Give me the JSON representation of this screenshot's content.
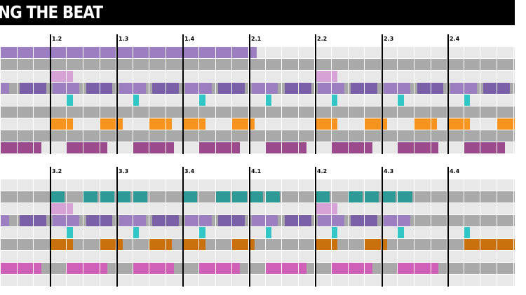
{
  "title": "NG THE BEAT",
  "colors": {
    "background": "#ffffff",
    "row_light": "#e8e8e8",
    "row_dark": "#a9a9a9",
    "gridline": "#ffffff",
    "bar_line": "#000000",
    "title_bg": "#000000",
    "title_fg": "#ffffff"
  },
  "panels": [
    {
      "bar_labels": [
        "1.2",
        "1.3",
        "1.4",
        "2.1",
        "2.2",
        "2.3",
        "2.4"
      ],
      "tracks": [
        {
          "name": "track-1",
          "color": "#9b7fc1",
          "notes": [
            [
              -1,
              14.5
            ]
          ]
        },
        {
          "name": "track-2",
          "color": "#a9a9a9",
          "notes": []
        },
        {
          "name": "track-3",
          "color": "#d7a3d6",
          "notes": [
            [
              2,
              3.4
            ],
            [
              18,
              19.4
            ]
          ]
        },
        {
          "name": "track-4",
          "color": "#7a60a6",
          "notes": [
            [
              -1,
              -0.45
            ],
            [
              0.2,
              1.8
            ],
            [
              2.2,
              3.8
            ],
            [
              4.2,
              5.8
            ],
            [
              6.2,
              7.8
            ],
            [
              8.2,
              9.8
            ],
            [
              10.2,
              11.8
            ],
            [
              12.2,
              13.8
            ],
            [
              14.2,
              15.8
            ],
            [
              16.2,
              17.8
            ],
            [
              18.2,
              19.8
            ],
            [
              20.2,
              21.8
            ],
            [
              22.2,
              23.8
            ],
            [
              24.2,
              25.8
            ],
            [
              26.2,
              27.8
            ],
            [
              28.2,
              29.8
            ],
            [
              30.2,
              31.2
            ]
          ],
          "alt": "#9b7fc1"
        },
        {
          "name": "track-5",
          "color": "#33c6c6",
          "notes": [
            [
              3,
              3.4
            ],
            [
              7,
              7.4
            ],
            [
              11,
              11.4
            ],
            [
              15,
              15.4
            ],
            [
              19,
              19.4
            ],
            [
              23,
              23.4
            ],
            [
              27,
              27.4
            ]
          ]
        },
        {
          "name": "track-6",
          "color": "#a9a9a9",
          "notes": []
        },
        {
          "name": "track-7",
          "color": "#f7941d",
          "notes": [
            [
              2,
              3.4
            ],
            [
              5,
              6.4
            ],
            [
              8,
              9.4
            ],
            [
              10,
              11.4
            ],
            [
              13,
              14.4
            ],
            [
              18,
              19.4
            ],
            [
              21,
              22.4
            ],
            [
              24,
              25.4
            ],
            [
              26,
              27.4
            ],
            [
              29,
              30.4
            ]
          ]
        },
        {
          "name": "track-8",
          "color": "#a9a9a9",
          "notes": []
        },
        {
          "name": "track-9",
          "color": "#9b4a8c",
          "notes": [
            [
              -1,
              1.5
            ],
            [
              3,
              5.5
            ],
            [
              7,
              9.5
            ],
            [
              11,
              13.5
            ],
            [
              15,
              17.5
            ],
            [
              19,
              21.5
            ],
            [
              23,
              25.5
            ],
            [
              27,
              29.5
            ]
          ]
        }
      ]
    },
    {
      "bar_labels": [
        "3.2",
        "3.3",
        "3.4",
        "4.1",
        "4.2",
        "4.3",
        "4.4"
      ],
      "tracks": [
        {
          "name": "track-1",
          "color": "#e8e8e8",
          "notes": []
        },
        {
          "name": "track-2",
          "color": "#2e9a95",
          "notes": [
            [
              2,
              2.9
            ],
            [
              4,
              4.9
            ],
            [
              5,
              5.9
            ],
            [
              6,
              6.9
            ],
            [
              7,
              7.9
            ],
            [
              10,
              10.9
            ],
            [
              12,
              12.9
            ],
            [
              13,
              13.9
            ],
            [
              14,
              14.9
            ],
            [
              15,
              15.9
            ],
            [
              18,
              18.9
            ],
            [
              20,
              20.9
            ],
            [
              21,
              21.9
            ],
            [
              22,
              22.9
            ],
            [
              23,
              23.9
            ]
          ]
        },
        {
          "name": "track-3",
          "color": "#d7a3d6",
          "notes": [
            [
              2,
              3.4
            ],
            [
              18,
              19.4
            ]
          ]
        },
        {
          "name": "track-4",
          "color": "#7a60a6",
          "notes": [
            [
              -1,
              -0.45
            ],
            [
              0.2,
              1.8
            ],
            [
              2.2,
              3.8
            ],
            [
              4.2,
              5.8
            ],
            [
              6.2,
              7.8
            ],
            [
              8.2,
              9.8
            ],
            [
              10.2,
              11.8
            ],
            [
              12.2,
              13.8
            ],
            [
              14.2,
              15.8
            ],
            [
              16.2,
              17.8
            ],
            [
              18.2,
              19.8
            ],
            [
              20.2,
              21.8
            ],
            [
              22.2,
              23.8
            ]
          ],
          "alt": "#9b7fc1"
        },
        {
          "name": "track-5",
          "color": "#33c6c6",
          "notes": [
            [
              3,
              3.4
            ],
            [
              7,
              7.4
            ],
            [
              11,
              11.4
            ],
            [
              15,
              15.4
            ],
            [
              19,
              19.4
            ],
            [
              23,
              23.4
            ],
            [
              27,
              27.4
            ]
          ]
        },
        {
          "name": "track-6",
          "color": "#c8710d",
          "notes": [
            [
              2,
              3.4
            ],
            [
              5,
              6.4
            ],
            [
              8,
              9.4
            ],
            [
              10,
              11.4
            ],
            [
              13,
              14.4
            ],
            [
              18,
              19.4
            ],
            [
              21,
              22.4
            ],
            [
              27,
              31.2
            ]
          ]
        },
        {
          "name": "track-7",
          "color": "#e8e8e8",
          "notes": []
        },
        {
          "name": "track-8",
          "color": "#d060b8",
          "notes": [
            [
              -1,
              1.5
            ],
            [
              3,
              5.5
            ],
            [
              7,
              9.5
            ],
            [
              11,
              13.5
            ],
            [
              15,
              17.5
            ],
            [
              19,
              21.5
            ],
            [
              23,
              25.5
            ]
          ]
        },
        {
          "name": "track-9",
          "color": "#a9a9a9",
          "notes": []
        }
      ]
    }
  ]
}
